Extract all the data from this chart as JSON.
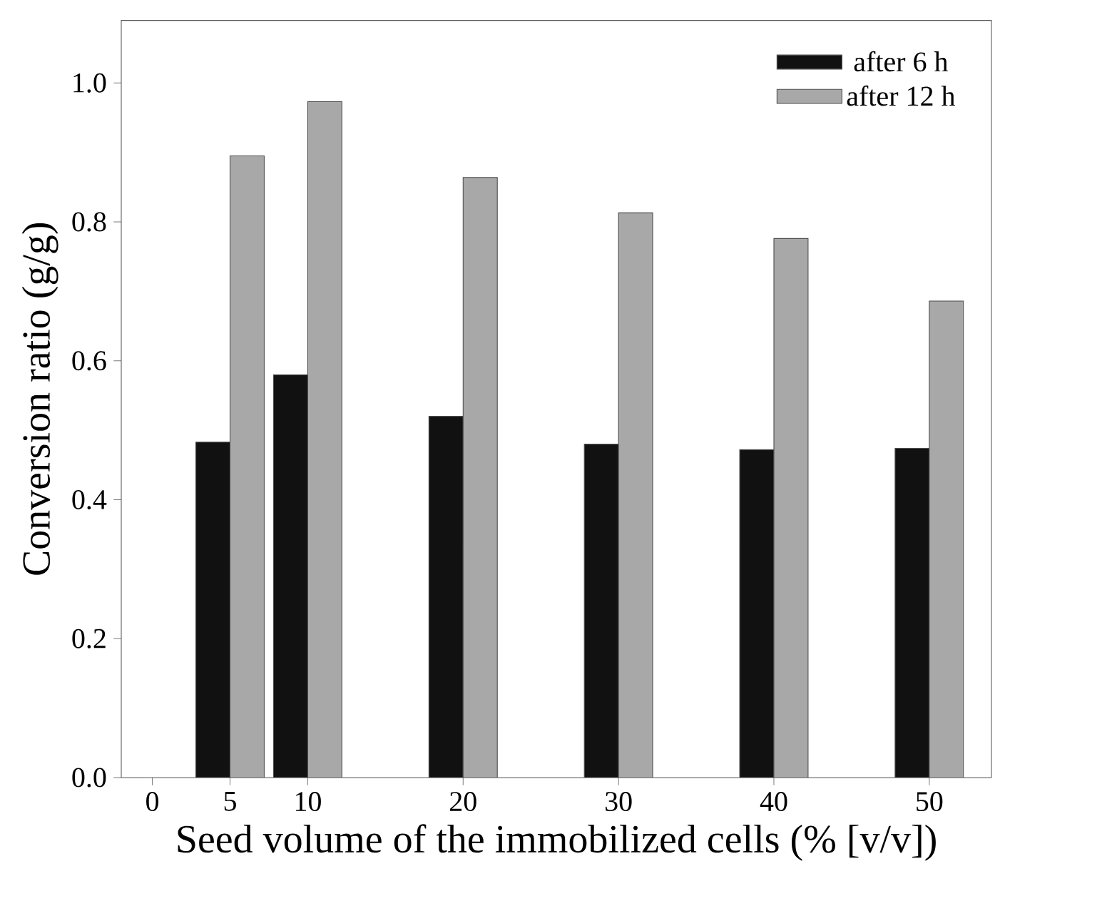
{
  "chart_data": {
    "type": "bar",
    "xlabel": "Seed volume of the immobilized cells (% [v/v])",
    "ylabel": "Conversion ratio (g/g)",
    "x": [
      5,
      10,
      20,
      30,
      40,
      50
    ],
    "series": [
      {
        "name": "after 6 h",
        "color": "#111111",
        "values": [
          0.483,
          0.58,
          0.52,
          0.48,
          0.472,
          0.474
        ]
      },
      {
        "name": "after 12 h",
        "color": "#a8a8a8",
        "values": [
          0.895,
          0.973,
          0.864,
          0.813,
          0.776,
          0.686
        ]
      }
    ],
    "xlim": [
      -2,
      54
    ],
    "xticks": [
      0,
      5,
      10,
      20,
      30,
      40,
      50
    ],
    "ylim": [
      0,
      1.09
    ],
    "yticks": [
      {
        "value": 0,
        "label": "0.0"
      },
      0.2,
      0.4,
      0.6,
      0.8,
      {
        "value": 1,
        "label": "1.0"
      }
    ],
    "grid": false,
    "legend": "top right"
  }
}
